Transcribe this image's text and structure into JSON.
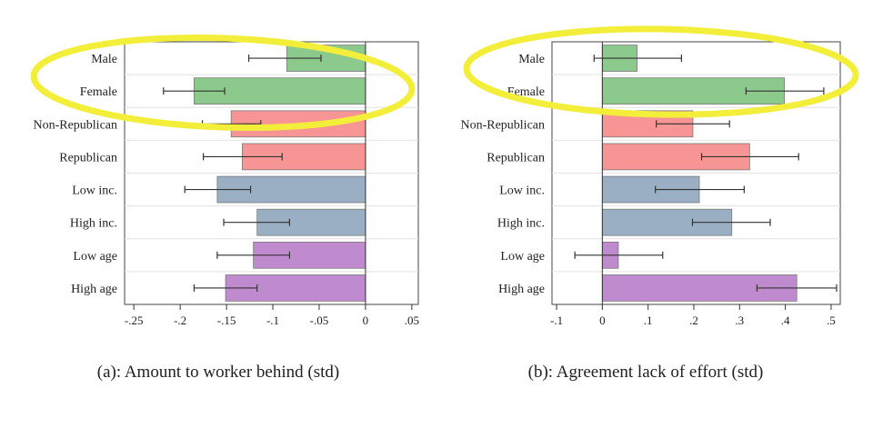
{
  "colors": {
    "male": "#8cc98c",
    "female": "#8cc98c",
    "nonrep": "#f79595",
    "rep": "#f79595",
    "lowinc": "#9aafc4",
    "highinc": "#9aafc4",
    "lowage": "#c08acf",
    "highage": "#c08acf",
    "highlight": "#f2ee3a",
    "errorbar": "#333333"
  },
  "chart_data": [
    {
      "type": "bar",
      "orientation": "horizontal",
      "caption": "(a): Amount to worker behind (std)",
      "categories": [
        "Male",
        "Female",
        "Non-Republican",
        "Republican",
        "Low inc.",
        "High inc.",
        "Low age",
        "High age"
      ],
      "category_keys": [
        "male",
        "female",
        "nonrep",
        "rep",
        "lowinc",
        "highinc",
        "lowage",
        "highage"
      ],
      "values": [
        -0.085,
        -0.185,
        -0.145,
        -0.133,
        -0.16,
        -0.117,
        -0.121,
        -0.151
      ],
      "ci_low": [
        -0.126,
        -0.218,
        -0.176,
        -0.175,
        -0.195,
        -0.153,
        -0.16,
        -0.185
      ],
      "ci_high": [
        -0.048,
        -0.152,
        -0.113,
        -0.09,
        -0.124,
        -0.082,
        -0.082,
        -0.117
      ],
      "xlim": [
        -0.26,
        0.057
      ],
      "xticks": [
        -0.25,
        -0.2,
        -0.15,
        -0.1,
        -0.05,
        0,
        0.05
      ],
      "xtick_labels": [
        "-.25",
        "-.2",
        "-.15",
        "-.1",
        "-.05",
        "0",
        ".05"
      ],
      "highlighted_categories": [
        "Male",
        "Female"
      ]
    },
    {
      "type": "bar",
      "orientation": "horizontal",
      "caption": "(b): Agreement lack of effort (std)",
      "categories": [
        "Male",
        "Female",
        "Non-Republican",
        "Republican",
        "Low inc.",
        "High inc.",
        "Low age",
        "High age"
      ],
      "category_keys": [
        "male",
        "female",
        "nonrep",
        "rep",
        "lowinc",
        "highinc",
        "lowage",
        "highage"
      ],
      "values": [
        0.076,
        0.398,
        0.198,
        0.322,
        0.212,
        0.283,
        0.035,
        0.425
      ],
      "ci_low": [
        -0.018,
        0.314,
        0.118,
        0.217,
        0.116,
        0.197,
        -0.06,
        0.338
      ],
      "ci_high": [
        0.173,
        0.484,
        0.278,
        0.429,
        0.31,
        0.367,
        0.132,
        0.512
      ],
      "xlim": [
        -0.11,
        0.52
      ],
      "xticks": [
        -0.1,
        0,
        0.1,
        0.2,
        0.3,
        0.4,
        0.5
      ],
      "xtick_labels": [
        "-.1",
        "0",
        ".1",
        ".2",
        ".3",
        ".4",
        ".5"
      ],
      "highlighted_categories": [
        "Male",
        "Female"
      ]
    }
  ]
}
